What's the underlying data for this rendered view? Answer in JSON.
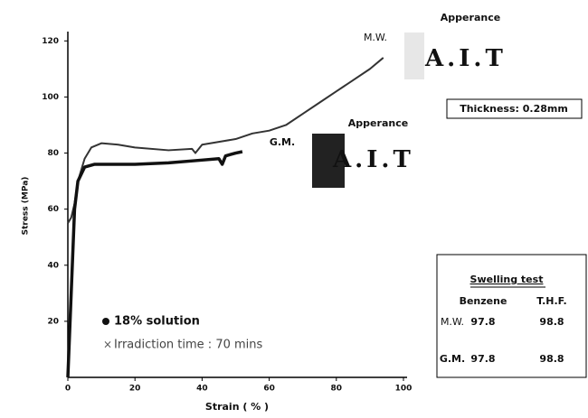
{
  "chart_data": {
    "type": "line",
    "x_label": "Strain ( % )",
    "y_label": "Stress (MPa)",
    "xlim": [
      0,
      100
    ],
    "ylim": [
      0,
      123
    ],
    "xticks": [
      0,
      20,
      40,
      60,
      80,
      100
    ],
    "yticks": [
      20,
      40,
      60,
      80,
      100,
      120
    ],
    "series": [
      {
        "name": "M.W.",
        "color": "#333333",
        "width": 2,
        "x": [
          0,
          1,
          2,
          3,
          5,
          7,
          10,
          15,
          20,
          30,
          37,
          38,
          40,
          45,
          50,
          55,
          60,
          65,
          70,
          75,
          80,
          85,
          90,
          94
        ],
        "values": [
          55,
          57,
          62,
          70,
          78,
          82,
          83.5,
          83,
          82,
          81,
          81.5,
          80,
          83,
          84,
          85,
          87,
          88,
          90,
          94,
          98,
          102,
          106,
          110,
          114
        ]
      },
      {
        "name": "G.M.",
        "color": "#111111",
        "width": 3.5,
        "x": [
          0,
          1,
          2,
          3,
          5,
          8,
          20,
          30,
          40,
          45,
          46,
          47,
          50,
          52
        ],
        "values": [
          0,
          30,
          60,
          70,
          75,
          76,
          76,
          76.5,
          77.5,
          78,
          76,
          79,
          80,
          80.5
        ]
      }
    ],
    "legend": [
      "18% solution",
      "Irradiction time : 70 mins"
    ],
    "appearance_label": "Apperance",
    "appearance_sample": "A.I.T",
    "thickness": "Thickness: 0.28mm"
  },
  "table": {
    "title": "Swelling test",
    "headers": [
      "Benzene",
      "T.H.F."
    ],
    "rows": [
      [
        "M.W.",
        "97.8",
        "98.8"
      ],
      [
        "G.M.",
        "97.8",
        "98.8"
      ]
    ]
  }
}
